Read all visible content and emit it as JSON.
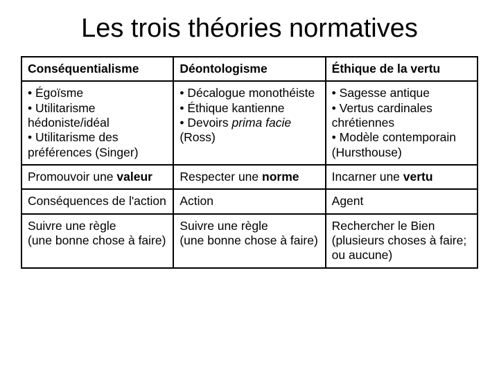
{
  "title": "Les trois théories normatives",
  "table": {
    "columns": 3,
    "border_color": "#000000",
    "background_color": "#ffffff",
    "font_family": "Arial",
    "cell_fontsize": 17.5,
    "title_fontsize": 38,
    "rows": [
      {
        "type": "header",
        "cells": [
          {
            "runs": [
              {
                "text": "Conséquentialisme",
                "bold": true
              }
            ]
          },
          {
            "runs": [
              {
                "text": "Déontologisme",
                "bold": true
              }
            ]
          },
          {
            "runs": [
              {
                "text": "Éthique de la vertu",
                "bold": true
              }
            ]
          }
        ]
      },
      {
        "type": "body",
        "cells": [
          {
            "runs": [
              {
                "text": "• Égoïsme"
              },
              {
                "br": true
              },
              {
                "text": "• Utilitarisme hédoniste/idéal"
              },
              {
                "br": true
              },
              {
                "text": "• Utilitarisme des préférences (Singer)"
              }
            ]
          },
          {
            "runs": [
              {
                "text": "• Décalogue monothéiste"
              },
              {
                "br": true
              },
              {
                "text": "• Éthique kantienne"
              },
              {
                "br": true
              },
              {
                "text": "• Devoirs "
              },
              {
                "text": "prima facie",
                "italic": true
              },
              {
                "text": " (Ross)"
              }
            ]
          },
          {
            "runs": [
              {
                "text": "• Sagesse antique"
              },
              {
                "br": true
              },
              {
                "text": "• Vertus cardinales chrétiennes"
              },
              {
                "br": true
              },
              {
                "text": "• Modèle contemporain (Hursthouse)"
              }
            ]
          }
        ]
      },
      {
        "type": "body",
        "cells": [
          {
            "runs": [
              {
                "text": "Promouvoir une "
              },
              {
                "text": "valeur",
                "bold": true
              }
            ]
          },
          {
            "runs": [
              {
                "text": "Respecter une "
              },
              {
                "text": "norme",
                "bold": true
              }
            ]
          },
          {
            "runs": [
              {
                "text": "Incarner une "
              },
              {
                "text": "vertu",
                "bold": true
              }
            ]
          }
        ]
      },
      {
        "type": "body",
        "cells": [
          {
            "runs": [
              {
                "text": "Conséquences de l'action"
              }
            ]
          },
          {
            "runs": [
              {
                "text": "Action"
              }
            ]
          },
          {
            "runs": [
              {
                "text": "Agent"
              }
            ]
          }
        ]
      },
      {
        "type": "body",
        "cells": [
          {
            "runs": [
              {
                "text": "Suivre une règle"
              },
              {
                "br": true
              },
              {
                "text": "(une bonne chose à faire)"
              }
            ]
          },
          {
            "runs": [
              {
                "text": "Suivre une règle"
              },
              {
                "br": true
              },
              {
                "text": "(une bonne chose à faire)"
              }
            ]
          },
          {
            "runs": [
              {
                "text": "Rechercher le Bien"
              },
              {
                "br": true
              },
              {
                "text": "(plusieurs choses à faire; ou aucune)"
              }
            ]
          }
        ]
      }
    ]
  }
}
